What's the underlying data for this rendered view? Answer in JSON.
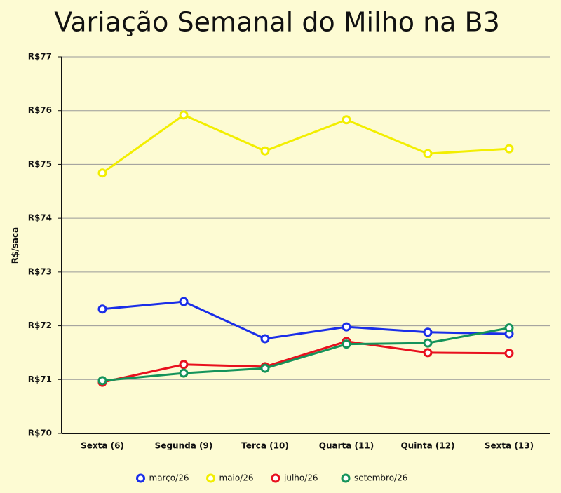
{
  "chart_data": {
    "type": "line",
    "title": "Variação Semanal do Milho na B3",
    "y_label": "R$/saca",
    "categories": [
      "Sexta (6)",
      "Segunda (9)",
      "Terça (10)",
      "Quarta (11)",
      "Quinta (12)",
      "Sexta (13)"
    ],
    "series": [
      {
        "name": "março/26",
        "color": "#1a2ee8",
        "values": [
          72.31,
          72.45,
          71.76,
          71.98,
          71.88,
          71.85
        ]
      },
      {
        "name": "maio/26",
        "color": "#f2ee00",
        "values": [
          74.84,
          75.92,
          75.25,
          75.83,
          75.2,
          75.29
        ]
      },
      {
        "name": "julho/26",
        "color": "#e8101e",
        "values": [
          70.95,
          71.28,
          71.24,
          71.71,
          71.5,
          71.49
        ]
      },
      {
        "name": "setembro/26",
        "color": "#14935a",
        "values": [
          70.98,
          71.12,
          71.21,
          71.66,
          71.68,
          71.96
        ]
      }
    ],
    "ylim": [
      70,
      77
    ],
    "yticks": [
      {
        "value": 70,
        "label": "R$70"
      },
      {
        "value": 71,
        "label": "R$71"
      },
      {
        "value": 72,
        "label": "R$72"
      },
      {
        "value": 73,
        "label": "R$73"
      },
      {
        "value": 74,
        "label": "R$74"
      },
      {
        "value": 75,
        "label": "R$75"
      },
      {
        "value": 76,
        "label": "R$76"
      },
      {
        "value": 77,
        "label": "R$77"
      }
    ],
    "grid": true,
    "legend": "bottom"
  }
}
